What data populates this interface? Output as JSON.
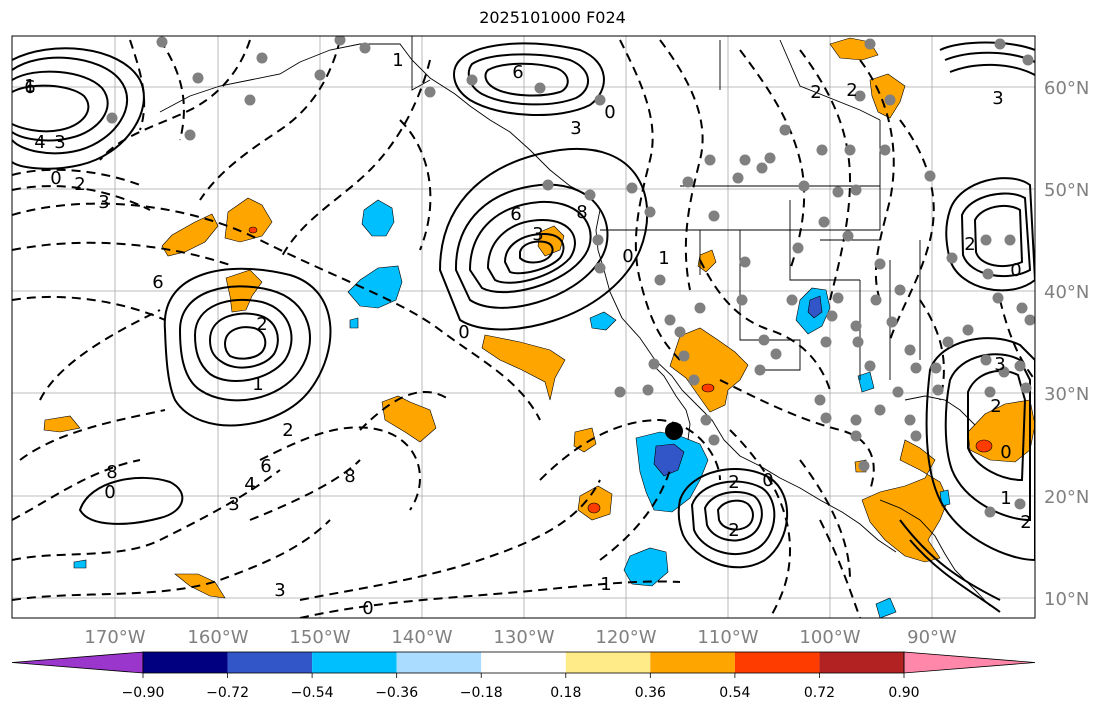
{
  "title": "2025101000 F024",
  "map": {
    "lon_labels": [
      "170°W",
      "160°W",
      "150°W",
      "140°W",
      "130°W",
      "120°W",
      "110°W",
      "100°W",
      "90°W"
    ],
    "lat_labels": [
      "60°N",
      "50°N",
      "40°N",
      "30°N",
      "20°N",
      "10°N"
    ],
    "contour_labels": [
      "6",
      "4",
      "3",
      "1",
      "0",
      "2",
      "3",
      "2",
      "1",
      "0",
      "6",
      "3",
      "6",
      "8",
      "3",
      "0",
      "2",
      "3",
      "4",
      "6",
      "8",
      "6",
      "8",
      "3",
      "0",
      "1",
      "2",
      "0",
      "2",
      "3",
      "2",
      "0",
      "1",
      "2",
      "0",
      "3",
      "2",
      "1",
      "0",
      "2",
      "0",
      "1",
      "2"
    ],
    "marker": "storm-center-marker"
  },
  "colorbar": {
    "colors": [
      "#9a36cc",
      "#000080",
      "#3255c8",
      "#00bfff",
      "#aadcff",
      "#ffffff",
      "#ffeb87",
      "#ffa500",
      "#ff3c00",
      "#b22222",
      "#ff88aa"
    ],
    "tick_labels": [
      "−0.90",
      "−0.72",
      "−0.54",
      "−0.36",
      "−0.18",
      "0.18",
      "0.36",
      "0.54",
      "0.72",
      "0.90"
    ]
  }
}
